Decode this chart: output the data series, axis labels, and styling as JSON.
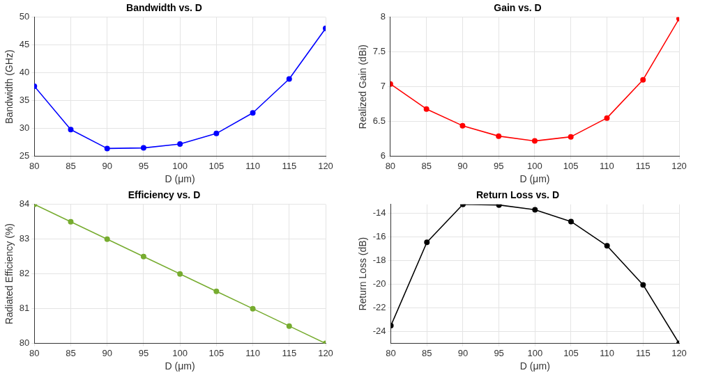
{
  "chart_data": [
    {
      "type": "line",
      "title": "Bandwidth vs. D",
      "xlabel": "D (μm)",
      "ylabel": "Bandwidth (GHz)",
      "x": [
        80,
        85,
        90,
        95,
        100,
        105,
        110,
        115,
        120
      ],
      "xlim": [
        80,
        120
      ],
      "xticks": [
        80,
        85,
        90,
        95,
        100,
        105,
        110,
        115,
        120
      ],
      "ylim": [
        25,
        50
      ],
      "yticks": [
        25,
        30,
        35,
        40,
        45,
        50
      ],
      "grid": true,
      "marker": "circle",
      "legend": false,
      "series": [
        {
          "color": "#0000ff",
          "values": [
            37.6,
            29.8,
            26.4,
            26.5,
            27.2,
            29.1,
            32.8,
            38.9,
            48.0
          ]
        }
      ]
    },
    {
      "type": "line",
      "title": "Gain vs. D",
      "xlabel": "D (μm)",
      "ylabel": "Realized Gain (dBi)",
      "x": [
        80,
        85,
        90,
        95,
        100,
        105,
        110,
        115,
        120
      ],
      "xlim": [
        80,
        120
      ],
      "xticks": [
        80,
        85,
        90,
        95,
        100,
        105,
        110,
        115,
        120
      ],
      "ylim": [
        6,
        8
      ],
      "yticks": [
        6,
        6.5,
        7,
        7.5,
        8
      ],
      "grid": true,
      "marker": "circle",
      "legend": false,
      "series": [
        {
          "color": "#ff0000",
          "values": [
            7.04,
            6.68,
            6.44,
            6.29,
            6.22,
            6.28,
            6.55,
            7.1,
            7.98
          ]
        }
      ]
    },
    {
      "type": "line",
      "title": "Efficiency vs. D",
      "xlabel": "D (μm)",
      "ylabel": "Radiated Efficiency (%)",
      "x": [
        80,
        85,
        90,
        95,
        100,
        105,
        110,
        115,
        120
      ],
      "xlim": [
        80,
        120
      ],
      "xticks": [
        80,
        85,
        90,
        95,
        100,
        105,
        110,
        115,
        120
      ],
      "ylim": [
        80,
        84
      ],
      "yticks": [
        80,
        81,
        82,
        83,
        84
      ],
      "grid": true,
      "marker": "circle",
      "legend": false,
      "series": [
        {
          "color": "#77ac30",
          "values": [
            84,
            83.5,
            83,
            82.5,
            82,
            81.5,
            81,
            80.5,
            80
          ]
        }
      ]
    },
    {
      "type": "line",
      "title": "Return Loss vs. D",
      "xlabel": "D (μm)",
      "ylabel": "Return Loss (dB)",
      "x": [
        80,
        85,
        90,
        95,
        100,
        105,
        110,
        115,
        120
      ],
      "xlim": [
        80,
        120
      ],
      "xticks": [
        80,
        85,
        90,
        95,
        100,
        105,
        110,
        115,
        120
      ],
      "ylim": [
        -25,
        -13.25
      ],
      "yticks": [
        -24,
        -22,
        -20,
        -18,
        -16,
        -14
      ],
      "grid": true,
      "marker": "circle",
      "legend": false,
      "series": [
        {
          "color": "#000000",
          "values": [
            -23.5,
            -16.45,
            -13.25,
            -13.3,
            -13.7,
            -14.7,
            -16.75,
            -20.05,
            -25
          ]
        }
      ]
    }
  ]
}
